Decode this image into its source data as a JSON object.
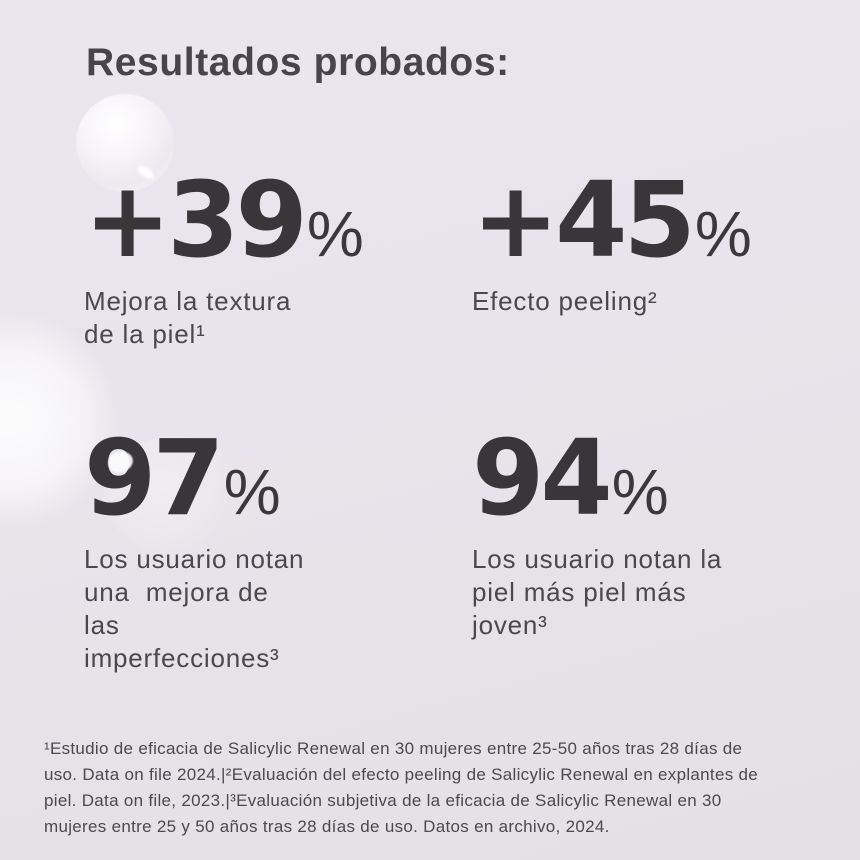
{
  "colors": {
    "background_top": "#eae6ee",
    "background_bottom": "#e4e1e5",
    "heading_text": "#47444b",
    "stat_number": "#393639",
    "caption_text": "#4a474d",
    "footnote_text": "#4b484f",
    "bubble": "#ffffff"
  },
  "header": {
    "title": "Resultados probados:"
  },
  "stats": [
    {
      "value": "+39",
      "unit": "%",
      "caption_lines": [
        "Mejora la textura",
        "de la piel¹"
      ]
    },
    {
      "value": "+45",
      "unit": "%",
      "caption_lines": [
        "Efecto peeling²"
      ]
    },
    {
      "value": "97",
      "unit": "%",
      "caption_lines": [
        "Los usuario notan",
        "una  mejora de",
        "las",
        "imperfecciones³"
      ]
    },
    {
      "value": "94",
      "unit": "%",
      "caption_lines": [
        "Los usuario notan la",
        "piel más piel más",
        "joven³"
      ]
    }
  ],
  "footnotes": {
    "lines": [
      "¹Estudio de eficacia de Salicylic Renewal en 30 mujeres entre 25-50 años tras 28 días de",
      "uso. Data on file 2024.|²Evaluación del efecto peeling de Salicylic Renewal en explantes de",
      "piel. Data on file, 2023.|³Evaluación subjetiva de la eficacia de Salicylic Renewal en 30",
      "mujeres entre 25 y 50 años tras 28 días de uso. Datos en archivo, 2024."
    ]
  }
}
